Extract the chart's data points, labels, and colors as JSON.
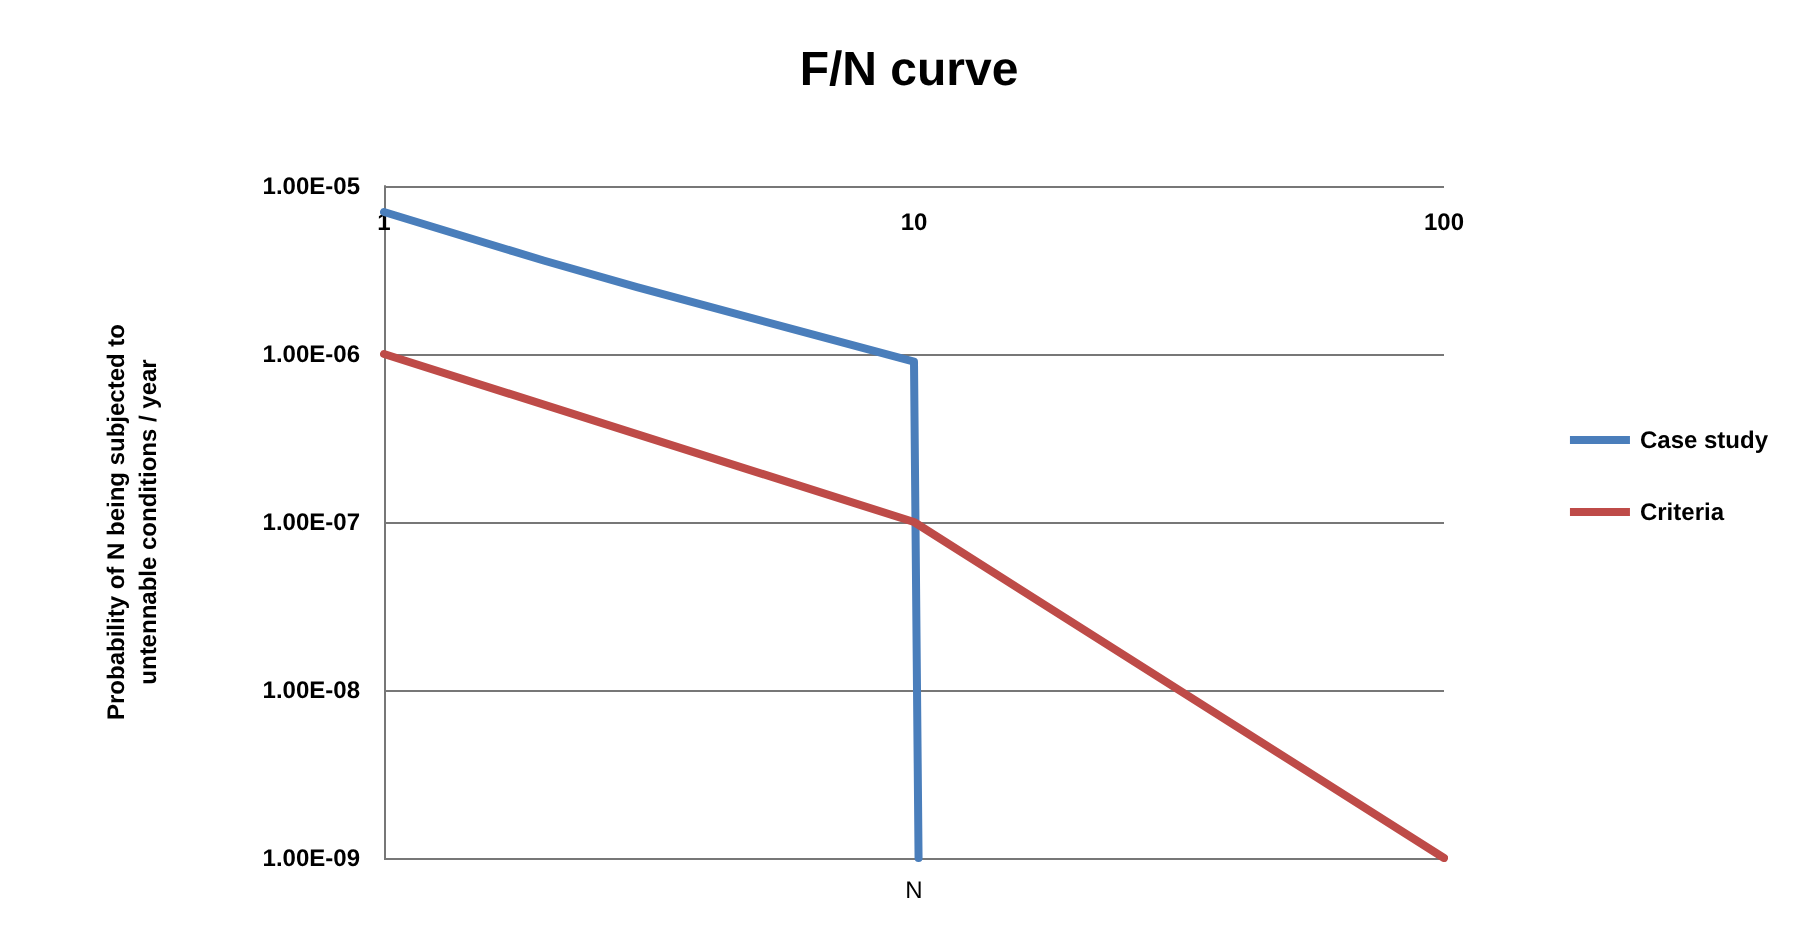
{
  "chart_data": {
    "type": "line",
    "title": "F/N curve",
    "xlabel": "N",
    "ylabel": "Probability of N being subjected to\nuntennable conditions / year",
    "log": "xy",
    "xlim": [
      1,
      100
    ],
    "xticks": [
      1,
      10,
      100
    ],
    "ylim": [
      1e-09,
      1e-05
    ],
    "yticks": [
      {
        "value": 1e-09,
        "label": "1.00E-09"
      },
      {
        "value": 1e-08,
        "label": "1.00E-08"
      },
      {
        "value": 1e-07,
        "label": "1.00E-07"
      },
      {
        "value": 1e-06,
        "label": "1.00E-06"
      },
      {
        "value": 1e-05,
        "label": "1.00E-05"
      }
    ],
    "grid": "y",
    "legend": "right",
    "marker": "none",
    "line_style": "solid",
    "series": [
      {
        "name": "Case study",
        "color": "#4a7ebb",
        "x": [
          1,
          2,
          3,
          10,
          10.2
        ],
        "values": [
          7e-06,
          3.6e-06,
          2.5e-06,
          9e-07,
          1e-09
        ]
      },
      {
        "name": "Criteria",
        "color": "#be4b48",
        "x": [
          1,
          10,
          100
        ],
        "values": [
          1e-06,
          1e-07,
          1e-09
        ]
      }
    ]
  }
}
